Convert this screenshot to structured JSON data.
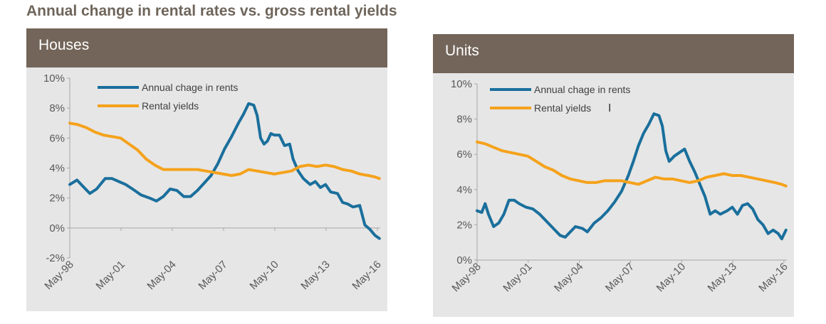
{
  "title": "Annual change in rental rates vs. gross rental yields",
  "colors": {
    "rents": "#1a6f9c",
    "yields": "#f5a21b",
    "header": "#736559",
    "panel": "#e6e6e6",
    "axis": "#a6a6a6"
  },
  "chart_data": [
    {
      "id": "houses",
      "type": "line",
      "title": "Houses",
      "ylim": [
        -2,
        10
      ],
      "yticks": [
        -2,
        0,
        2,
        4,
        6,
        8,
        10
      ],
      "ytick_labels": [
        "-2%",
        "0%",
        "2%",
        "4%",
        "6%",
        "8%",
        "10%"
      ],
      "xlim": [
        1998.33,
        2016.5
      ],
      "xticks": [
        1998.33,
        2001.33,
        2004.33,
        2007.33,
        2010.33,
        2013.33,
        2016.33
      ],
      "xtick_labels": [
        "May-98",
        "May-01",
        "May-04",
        "May-07",
        "May-10",
        "May-13",
        "May-16"
      ],
      "legend_position": "top-center",
      "grid": false,
      "series": [
        {
          "name": "Annual chage in rents",
          "color": "#1a6f9c",
          "x": [
            1998.33,
            1998.75,
            1999.0,
            1999.5,
            1999.9,
            2000.4,
            2000.8,
            2001.2,
            2001.6,
            2002.0,
            2002.5,
            2003.0,
            2003.4,
            2003.8,
            2004.2,
            2004.6,
            2005.0,
            2005.4,
            2005.8,
            2006.2,
            2006.6,
            2007.0,
            2007.4,
            2007.8,
            2008.2,
            2008.5,
            2008.8,
            2009.1,
            2009.3,
            2009.5,
            2009.7,
            2009.9,
            2010.1,
            2010.3,
            2010.6,
            2010.9,
            2011.2,
            2011.4,
            2011.7,
            2012.0,
            2012.4,
            2012.7,
            2013.0,
            2013.3,
            2013.6,
            2014.0,
            2014.3,
            2014.6,
            2014.9,
            2015.3,
            2015.6,
            2015.9,
            2016.2,
            2016.45
          ],
          "values": [
            2.9,
            3.2,
            2.9,
            2.3,
            2.6,
            3.3,
            3.3,
            3.1,
            2.9,
            2.6,
            2.2,
            2.0,
            1.8,
            2.1,
            2.6,
            2.5,
            2.1,
            2.1,
            2.5,
            3.0,
            3.5,
            4.3,
            5.3,
            6.1,
            7.0,
            7.6,
            8.3,
            8.2,
            7.5,
            6.0,
            5.6,
            5.8,
            6.3,
            6.2,
            6.2,
            5.5,
            5.6,
            4.6,
            3.8,
            3.3,
            2.9,
            3.1,
            2.7,
            2.9,
            2.4,
            2.3,
            1.7,
            1.6,
            1.4,
            1.5,
            0.2,
            -0.1,
            -0.5,
            -0.7
          ]
        },
        {
          "name": "Rental yields",
          "color": "#f5a21b",
          "x": [
            1998.33,
            1998.8,
            1999.3,
            1999.8,
            2000.3,
            2000.8,
            2001.3,
            2001.8,
            2002.3,
            2002.8,
            2003.3,
            2003.8,
            2004.3,
            2004.8,
            2005.3,
            2005.8,
            2006.3,
            2006.8,
            2007.3,
            2007.8,
            2008.3,
            2008.8,
            2009.3,
            2009.8,
            2010.3,
            2010.8,
            2011.3,
            2011.8,
            2012.3,
            2012.8,
            2013.3,
            2013.8,
            2014.3,
            2014.8,
            2015.3,
            2015.8,
            2016.2,
            2016.45
          ],
          "values": [
            7.0,
            6.9,
            6.7,
            6.4,
            6.2,
            6.1,
            6.0,
            5.6,
            5.2,
            4.6,
            4.2,
            3.9,
            3.9,
            3.9,
            3.9,
            3.9,
            3.8,
            3.7,
            3.6,
            3.5,
            3.6,
            3.9,
            3.8,
            3.7,
            3.6,
            3.7,
            3.8,
            4.1,
            4.2,
            4.1,
            4.2,
            4.1,
            3.9,
            3.8,
            3.6,
            3.5,
            3.4,
            3.3
          ]
        }
      ]
    },
    {
      "id": "units",
      "type": "line",
      "title": "Units",
      "ylim": [
        0,
        10
      ],
      "yticks": [
        0,
        2,
        4,
        6,
        8,
        10
      ],
      "ytick_labels": [
        "0%",
        "2%",
        "4%",
        "6%",
        "8%",
        "10%"
      ],
      "xlim": [
        1998.33,
        2016.5
      ],
      "xticks": [
        1998.33,
        2001.33,
        2004.33,
        2007.33,
        2010.33,
        2013.33,
        2016.33
      ],
      "xtick_labels": [
        "May-98",
        "May-01",
        "May-04",
        "May-07",
        "May-10",
        "May-13",
        "May-16"
      ],
      "legend_position": "top-center",
      "grid": false,
      "series": [
        {
          "name": "Annual chage in rents",
          "color": "#1a6f9c",
          "x": [
            1998.33,
            1998.6,
            1998.8,
            1999.0,
            1999.3,
            1999.6,
            1999.9,
            2000.2,
            2000.5,
            2000.8,
            2001.2,
            2001.6,
            2002.0,
            2002.4,
            2002.8,
            2003.2,
            2003.5,
            2003.8,
            2004.1,
            2004.5,
            2004.8,
            2005.2,
            2005.6,
            2006.0,
            2006.4,
            2006.8,
            2007.2,
            2007.5,
            2007.8,
            2008.1,
            2008.4,
            2008.7,
            2009.0,
            2009.2,
            2009.4,
            2009.6,
            2009.9,
            2010.2,
            2010.5,
            2010.8,
            2011.1,
            2011.4,
            2011.7,
            2012.0,
            2012.3,
            2012.6,
            2013.0,
            2013.3,
            2013.6,
            2013.9,
            2014.2,
            2014.5,
            2014.8,
            2015.1,
            2015.4,
            2015.7,
            2016.0,
            2016.2,
            2016.45
          ],
          "values": [
            2.8,
            2.7,
            3.2,
            2.6,
            1.9,
            2.1,
            2.6,
            3.4,
            3.4,
            3.2,
            3.0,
            2.9,
            2.6,
            2.2,
            1.8,
            1.4,
            1.3,
            1.6,
            1.9,
            1.8,
            1.6,
            2.1,
            2.4,
            2.8,
            3.3,
            3.9,
            4.8,
            5.6,
            6.5,
            7.2,
            7.7,
            8.3,
            8.2,
            7.6,
            6.2,
            5.6,
            5.9,
            6.1,
            6.3,
            5.6,
            5.0,
            4.3,
            3.6,
            2.6,
            2.8,
            2.6,
            2.8,
            3.0,
            2.6,
            3.1,
            3.2,
            2.9,
            2.3,
            2.0,
            1.5,
            1.7,
            1.5,
            1.2,
            1.7
          ]
        },
        {
          "name": "Rental yields",
          "color": "#f5a21b",
          "x": [
            1998.33,
            1998.8,
            1999.3,
            1999.8,
            2000.3,
            2000.8,
            2001.3,
            2001.8,
            2002.3,
            2002.8,
            2003.3,
            2003.8,
            2004.3,
            2004.8,
            2005.3,
            2005.8,
            2006.3,
            2006.8,
            2007.3,
            2007.8,
            2008.3,
            2008.8,
            2009.3,
            2009.8,
            2010.3,
            2010.8,
            2011.3,
            2011.8,
            2012.3,
            2012.8,
            2013.3,
            2013.8,
            2014.3,
            2014.8,
            2015.3,
            2015.8,
            2016.2,
            2016.45
          ],
          "values": [
            6.7,
            6.6,
            6.4,
            6.2,
            6.1,
            6.0,
            5.9,
            5.6,
            5.3,
            5.1,
            4.8,
            4.6,
            4.5,
            4.4,
            4.4,
            4.5,
            4.5,
            4.5,
            4.4,
            4.3,
            4.5,
            4.7,
            4.6,
            4.6,
            4.5,
            4.4,
            4.5,
            4.7,
            4.8,
            4.9,
            4.8,
            4.8,
            4.7,
            4.6,
            4.5,
            4.4,
            4.3,
            4.2
          ]
        }
      ]
    }
  ]
}
